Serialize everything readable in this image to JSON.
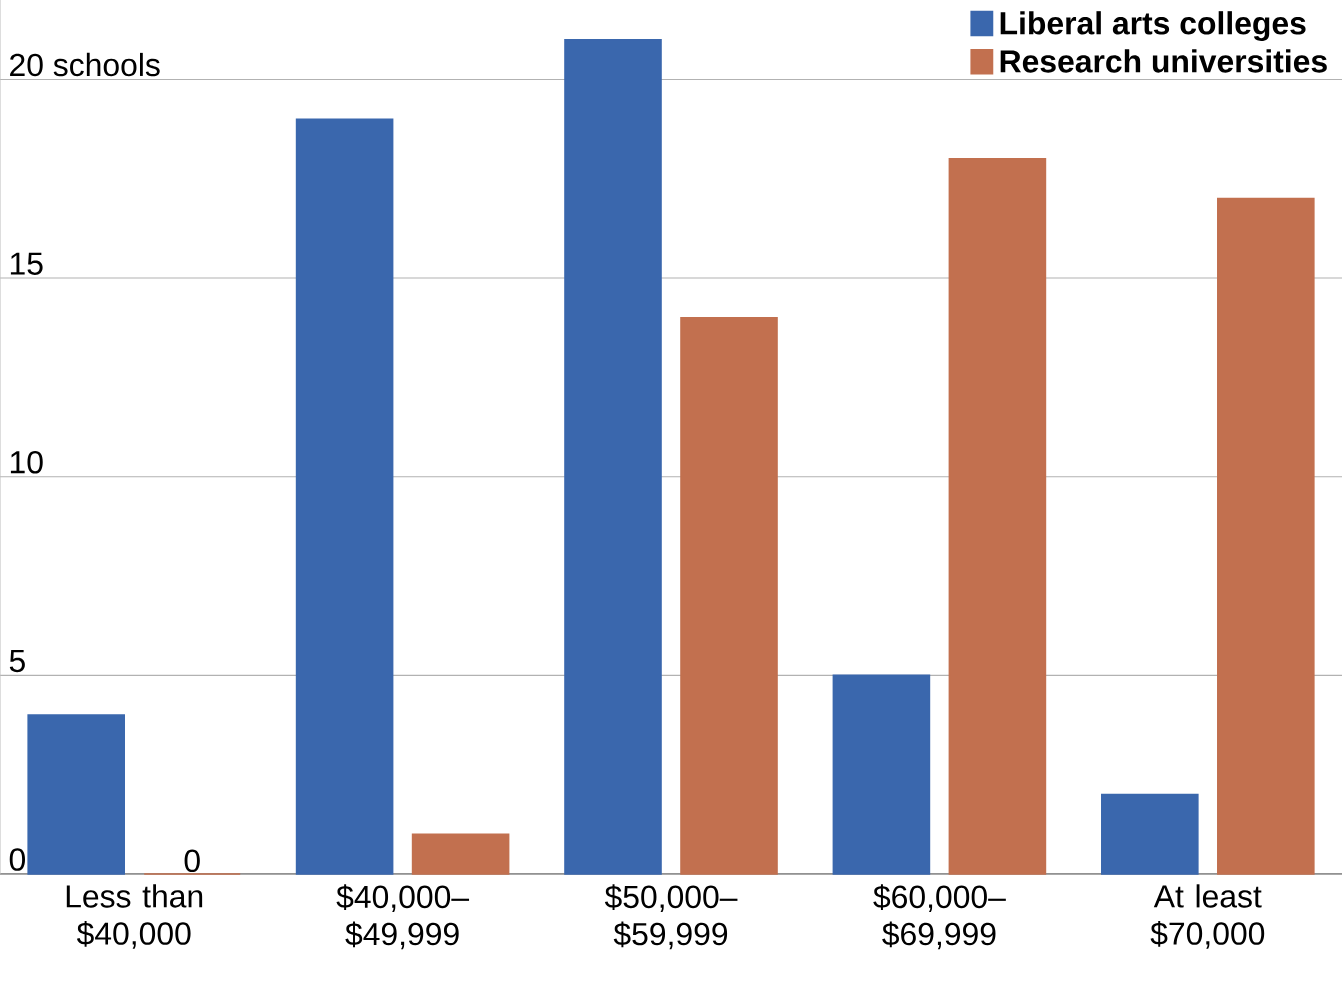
{
  "chart_data": {
    "type": "bar",
    "categories": [
      "Less than $40,000",
      "$40,000– $49,999",
      "$50,000– $59,999",
      "$60,000– $69,999",
      "At least $70,000"
    ],
    "series": [
      {
        "name": "Liberal arts colleges",
        "color": "#3a67ad",
        "values": [
          4,
          19,
          21,
          5,
          2
        ]
      },
      {
        "name": "Research universities",
        "color": "#c2704f",
        "values": [
          0,
          1,
          14,
          18,
          17
        ],
        "value_labels": [
          "0",
          null,
          null,
          null,
          null
        ]
      }
    ],
    "ylim": [
      0,
      22
    ],
    "yticks": [
      0,
      5,
      10,
      15,
      {
        "value": 20,
        "label": "20 schools"
      }
    ],
    "grid": "y",
    "legend": "top right"
  }
}
